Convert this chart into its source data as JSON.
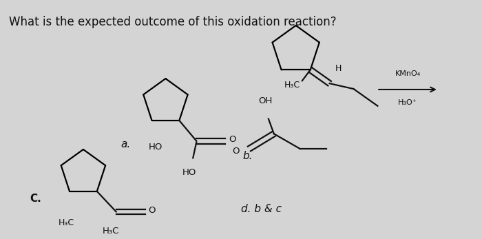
{
  "title": "What is the expected outcome of this oxidation reaction?",
  "title_fontsize": 12,
  "bg_color": "#d4d4d4",
  "panel_bg": "#e8e8e8",
  "text_color": "#111111",
  "reagent_top": "KMnO₄",
  "reagent_bottom": "H₃O⁺",
  "label_a": "a.",
  "label_b": "b.",
  "label_c": "C.",
  "label_d": "d. b & c",
  "ho_label": "HO",
  "oh_label": "OH",
  "h3c_reactant": "H₃C",
  "h3c_c": "H₃C",
  "h_label": "H",
  "o_label": "O"
}
